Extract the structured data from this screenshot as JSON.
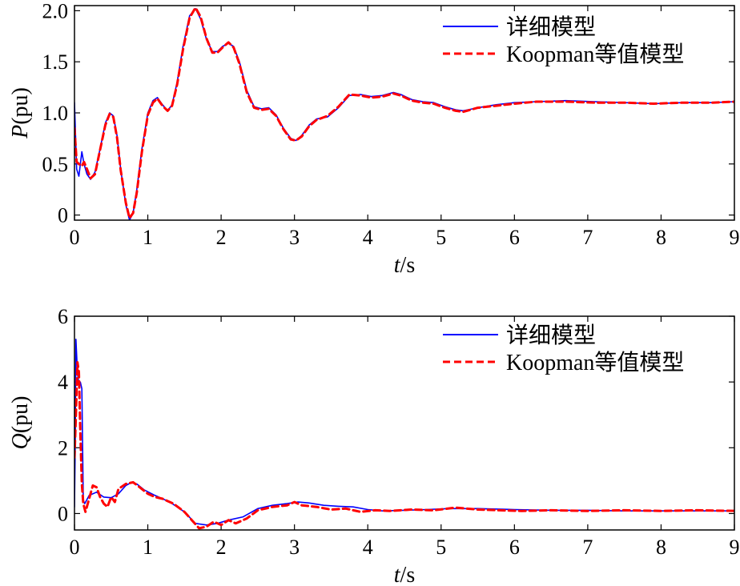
{
  "chart_data": [
    {
      "type": "line",
      "xlabel_italic": "t",
      "xlabel_unit": "/s",
      "ylabel_italic": "P",
      "ylabel_unit": "(pu)",
      "xlim": [
        0,
        9
      ],
      "ylim": [
        -0.05,
        2.05
      ],
      "xticks": [
        "0",
        "1",
        "2",
        "3",
        "4",
        "5",
        "6",
        "7",
        "8",
        "9"
      ],
      "yticks": [
        {
          "value": 0,
          "label": "0"
        },
        {
          "value": 0.5,
          "label": "0.5"
        },
        {
          "value": 1.0,
          "label": "1.0"
        },
        {
          "value": 1.5,
          "label": "1.5"
        },
        {
          "value": 2.0,
          "label": "2.0"
        }
      ],
      "legend_position": "top-right",
      "grid": false,
      "series": [
        {
          "name": "详细模型",
          "color": "#0000ff",
          "style": "solid",
          "x": [
            0,
            0.03,
            0.06,
            0.1,
            0.13,
            0.17,
            0.22,
            0.28,
            0.35,
            0.42,
            0.48,
            0.53,
            0.58,
            0.63,
            0.7,
            0.75,
            0.8,
            0.85,
            0.92,
            1.0,
            1.07,
            1.13,
            1.2,
            1.27,
            1.33,
            1.4,
            1.48,
            1.57,
            1.65,
            1.72,
            1.8,
            1.88,
            1.95,
            2.02,
            2.1,
            2.17,
            2.25,
            2.35,
            2.45,
            2.55,
            2.65,
            2.75,
            2.85,
            2.95,
            3.02,
            3.1,
            3.2,
            3.3,
            3.45,
            3.6,
            3.75,
            3.9,
            4.05,
            4.2,
            4.35,
            4.45,
            4.6,
            4.75,
            4.9,
            5.05,
            5.2,
            5.3,
            5.5,
            5.75,
            6.0,
            6.3,
            6.7,
            7.1,
            7.5,
            7.9,
            8.3,
            8.7,
            9.0
          ],
          "y": [
            1.1,
            0.45,
            0.38,
            0.62,
            0.5,
            0.4,
            0.35,
            0.42,
            0.65,
            0.9,
            1.0,
            0.97,
            0.78,
            0.45,
            0.1,
            -0.05,
            0.02,
            0.25,
            0.65,
            1.0,
            1.12,
            1.15,
            1.08,
            1.02,
            1.08,
            1.3,
            1.65,
            1.95,
            2.02,
            1.92,
            1.72,
            1.6,
            1.6,
            1.65,
            1.68,
            1.65,
            1.5,
            1.22,
            1.06,
            1.04,
            1.05,
            0.98,
            0.85,
            0.75,
            0.73,
            0.78,
            0.88,
            0.94,
            0.96,
            1.05,
            1.17,
            1.18,
            1.16,
            1.17,
            1.2,
            1.18,
            1.13,
            1.11,
            1.1,
            1.06,
            1.03,
            1.02,
            1.05,
            1.08,
            1.1,
            1.11,
            1.12,
            1.11,
            1.1,
            1.09,
            1.1,
            1.1,
            1.11
          ]
        },
        {
          "name": "Koopman等值模型",
          "color": "#ff0000",
          "style": "dashed",
          "x": [
            0,
            0.03,
            0.06,
            0.1,
            0.13,
            0.17,
            0.22,
            0.28,
            0.35,
            0.42,
            0.48,
            0.53,
            0.58,
            0.63,
            0.7,
            0.75,
            0.8,
            0.85,
            0.92,
            1.0,
            1.07,
            1.13,
            1.2,
            1.27,
            1.33,
            1.4,
            1.48,
            1.57,
            1.65,
            1.72,
            1.8,
            1.88,
            1.95,
            2.02,
            2.1,
            2.17,
            2.25,
            2.35,
            2.45,
            2.55,
            2.65,
            2.75,
            2.85,
            2.95,
            3.02,
            3.1,
            3.2,
            3.3,
            3.45,
            3.6,
            3.75,
            3.9,
            4.05,
            4.2,
            4.35,
            4.45,
            4.6,
            4.75,
            4.9,
            5.05,
            5.2,
            5.3,
            5.5,
            5.75,
            6.0,
            6.3,
            6.7,
            7.1,
            7.5,
            7.9,
            8.3,
            8.7,
            9.0
          ],
          "y": [
            0.85,
            0.52,
            0.5,
            0.48,
            0.52,
            0.45,
            0.36,
            0.4,
            0.64,
            0.88,
            0.99,
            0.96,
            0.76,
            0.44,
            0.12,
            -0.03,
            0.02,
            0.22,
            0.62,
            0.98,
            1.1,
            1.14,
            1.07,
            1.02,
            1.07,
            1.28,
            1.62,
            1.93,
            2.03,
            1.94,
            1.73,
            1.59,
            1.59,
            1.64,
            1.69,
            1.64,
            1.48,
            1.2,
            1.05,
            1.03,
            1.04,
            0.97,
            0.84,
            0.74,
            0.73,
            0.77,
            0.87,
            0.93,
            0.97,
            1.06,
            1.18,
            1.17,
            1.15,
            1.16,
            1.19,
            1.17,
            1.12,
            1.1,
            1.09,
            1.05,
            1.02,
            1.01,
            1.05,
            1.07,
            1.09,
            1.11,
            1.11,
            1.1,
            1.1,
            1.09,
            1.1,
            1.1,
            1.11
          ]
        }
      ]
    },
    {
      "type": "line",
      "xlabel_italic": "t",
      "xlabel_unit": "/s",
      "ylabel_italic": "Q",
      "ylabel_unit": "(pu)",
      "xlim": [
        0,
        9
      ],
      "ylim": [
        -0.5,
        6
      ],
      "xticks": [
        "0",
        "1",
        "2",
        "3",
        "4",
        "5",
        "6",
        "7",
        "8",
        "9"
      ],
      "yticks": [
        {
          "value": 0,
          "label": "0"
        },
        {
          "value": 2,
          "label": "2"
        },
        {
          "value": 4,
          "label": "4"
        },
        {
          "value": 6,
          "label": "6"
        }
      ],
      "legend_position": "top-right",
      "grid": false,
      "series": [
        {
          "name": "详细模型",
          "color": "#0000ff",
          "style": "solid",
          "x": [
            0,
            0.01,
            0.02,
            0.04,
            0.06,
            0.08,
            0.1,
            0.12,
            0.14,
            0.2,
            0.3,
            0.4,
            0.5,
            0.6,
            0.7,
            0.78,
            0.85,
            0.95,
            1.1,
            1.3,
            1.5,
            1.65,
            1.8,
            1.95,
            2.1,
            2.3,
            2.5,
            2.7,
            2.9,
            3.05,
            3.2,
            3.4,
            3.6,
            3.8,
            4.0,
            4.2,
            4.5,
            4.8,
            5.1,
            5.5,
            6.0,
            6.5,
            7.0,
            7.5,
            8.0,
            8.5,
            9.0
          ],
          "y": [
            0.2,
            2.0,
            5.3,
            4.3,
            3.9,
            4.0,
            3.8,
            0.4,
            0.3,
            0.55,
            0.65,
            0.5,
            0.48,
            0.6,
            0.85,
            0.95,
            0.9,
            0.72,
            0.55,
            0.35,
            0.05,
            -0.3,
            -0.35,
            -0.3,
            -0.2,
            -0.1,
            0.15,
            0.25,
            0.3,
            0.35,
            0.32,
            0.25,
            0.22,
            0.2,
            0.12,
            0.08,
            0.1,
            0.12,
            0.15,
            0.15,
            0.12,
            0.1,
            0.1,
            0.08,
            0.08,
            0.08,
            0.08
          ]
        },
        {
          "name": "Koopman等值模型",
          "color": "#ff0000",
          "style": "dashed",
          "x": [
            0,
            0.02,
            0.04,
            0.06,
            0.08,
            0.1,
            0.12,
            0.15,
            0.2,
            0.25,
            0.3,
            0.35,
            0.4,
            0.45,
            0.5,
            0.55,
            0.6,
            0.7,
            0.8,
            0.9,
            1.0,
            1.1,
            1.2,
            1.35,
            1.5,
            1.6,
            1.7,
            1.8,
            1.9,
            2.0,
            2.1,
            2.2,
            2.35,
            2.5,
            2.7,
            2.9,
            3.0,
            3.1,
            3.3,
            3.5,
            3.7,
            3.9,
            4.1,
            4.3,
            4.6,
            4.9,
            5.2,
            5.5,
            5.8,
            6.1,
            6.5,
            7.0,
            7.5,
            8.0,
            8.5,
            9.0
          ],
          "y": [
            1.7,
            3.0,
            4.6,
            4.3,
            2.5,
            0.9,
            0.3,
            0.05,
            0.45,
            0.85,
            0.8,
            0.5,
            0.3,
            0.2,
            0.5,
            0.35,
            0.75,
            0.9,
            0.95,
            0.78,
            0.6,
            0.5,
            0.45,
            0.3,
            0.05,
            -0.2,
            -0.45,
            -0.4,
            -0.25,
            -0.35,
            -0.2,
            -0.3,
            -0.15,
            0.1,
            0.2,
            0.25,
            0.35,
            0.25,
            0.2,
            0.12,
            0.15,
            0.05,
            0.1,
            0.08,
            0.12,
            0.1,
            0.18,
            0.12,
            0.1,
            0.08,
            0.1,
            0.08,
            0.1,
            0.08,
            0.1,
            0.08
          ]
        }
      ]
    }
  ]
}
